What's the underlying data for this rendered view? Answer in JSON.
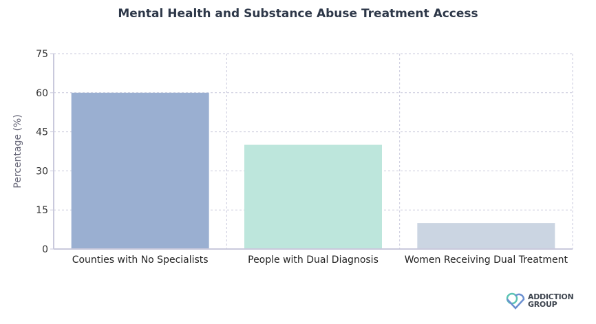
{
  "chart_data": {
    "type": "bar",
    "title": "Mental Health and Substance Abuse Treatment Access",
    "xlabel": "",
    "ylabel": "Percentage (%)",
    "categories": [
      "Counties with No Specialists",
      "People with Dual Diagnosis",
      "Women Receiving Dual Treatment"
    ],
    "values": [
      60,
      40,
      10
    ],
    "colors": [
      "#9aafd1",
      "#bde6dc",
      "#cbd5e2"
    ],
    "ylim": [
      0,
      75
    ],
    "yticks": [
      0,
      15,
      30,
      45,
      60,
      75
    ],
    "grid": true,
    "legend": "none"
  },
  "logo": {
    "line1": "ADDICTION",
    "line2": "GROUP"
  }
}
